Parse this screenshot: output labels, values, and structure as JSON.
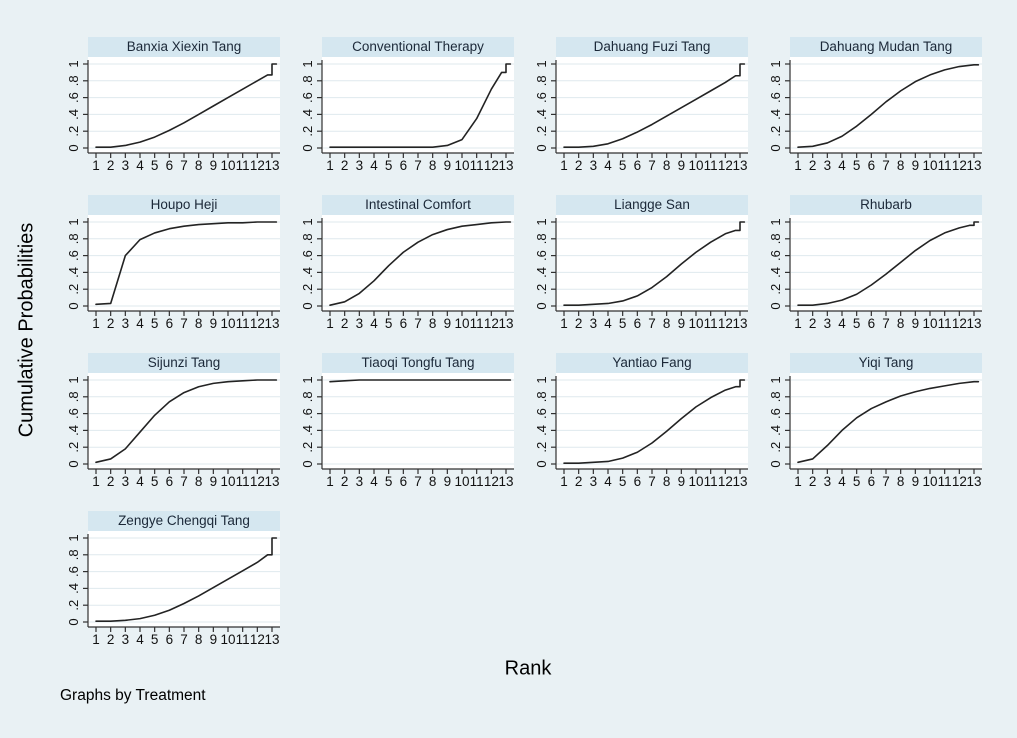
{
  "figure": {
    "ylabel": "Cumulative Probabilities",
    "xlabel": "Rank",
    "note": "Graphs by Treatment"
  },
  "colors": {
    "background": "#e9f1f4",
    "panel_title_strip": "#d5e7f0",
    "panel_title_text": "#1b2838",
    "plot_background": "#ffffff",
    "gridline": "#dfe9ee",
    "axis": "#303030",
    "curve": "#232323",
    "tick_label": "#111111"
  },
  "chart_data": {
    "type": "line",
    "layout": "small-multiples (4x4 grid, by Treatment)",
    "title": "",
    "xlabel": "Rank",
    "ylabel": "Cumulative Probabilities",
    "note": "Graphs by Treatment",
    "grid": true,
    "x": [
      1,
      2,
      3,
      4,
      5,
      6,
      7,
      8,
      9,
      10,
      11,
      12,
      13
    ],
    "x_tick_labels": [
      "1",
      "2",
      "3",
      "4",
      "5",
      "6",
      "7",
      "8",
      "9",
      "10",
      "11",
      "12",
      "13"
    ],
    "xlim": [
      0.5,
      13.5
    ],
    "ylim": [
      0,
      1
    ],
    "yticks": [
      0,
      0.2,
      0.4,
      0.6,
      0.8,
      1
    ],
    "ytick_labels": [
      "0",
      ".2",
      ".4",
      ".6",
      ".8",
      "1"
    ],
    "panels": [
      {
        "title": "Banxia Xiexin Tang",
        "values": [
          0.01,
          0.01,
          0.03,
          0.07,
          0.13,
          0.21,
          0.3,
          0.4,
          0.5,
          0.6,
          0.7,
          0.8,
          0.87
        ],
        "jump_to_one_at_13": true
      },
      {
        "title": "Conventional Therapy",
        "values": [
          0.01,
          0.01,
          0.01,
          0.01,
          0.01,
          0.01,
          0.01,
          0.01,
          0.03,
          0.1,
          0.35,
          0.7,
          0.9
        ],
        "jump_to_one_at_13": true
      },
      {
        "title": "Dahuang Fuzi Tang",
        "values": [
          0.01,
          0.01,
          0.02,
          0.05,
          0.11,
          0.19,
          0.28,
          0.38,
          0.48,
          0.58,
          0.68,
          0.78,
          0.86
        ],
        "jump_to_one_at_13": true
      },
      {
        "title": "Dahuang Mudan Tang",
        "values": [
          0.01,
          0.02,
          0.06,
          0.14,
          0.26,
          0.4,
          0.55,
          0.68,
          0.79,
          0.87,
          0.93,
          0.97,
          0.99
        ],
        "jump_to_one_at_13": false
      },
      {
        "title": "Houpo Heji",
        "values": [
          0.02,
          0.03,
          0.6,
          0.79,
          0.87,
          0.92,
          0.95,
          0.97,
          0.98,
          0.99,
          0.99,
          1.0,
          1.0
        ],
        "jump_to_one_at_13": false
      },
      {
        "title": "Intestinal Comfort",
        "values": [
          0.01,
          0.05,
          0.15,
          0.3,
          0.48,
          0.64,
          0.76,
          0.85,
          0.91,
          0.95,
          0.97,
          0.99,
          1.0
        ],
        "jump_to_one_at_13": false
      },
      {
        "title": "Liangge San",
        "values": [
          0.01,
          0.01,
          0.02,
          0.03,
          0.06,
          0.12,
          0.22,
          0.35,
          0.5,
          0.64,
          0.76,
          0.86,
          0.9
        ],
        "jump_to_one_at_13": true
      },
      {
        "title": "Rhubarb",
        "values": [
          0.01,
          0.01,
          0.03,
          0.07,
          0.14,
          0.25,
          0.38,
          0.52,
          0.66,
          0.78,
          0.87,
          0.93,
          0.96
        ],
        "jump_to_one_at_13": true
      },
      {
        "title": "Sijunzi Tang",
        "values": [
          0.02,
          0.06,
          0.18,
          0.38,
          0.58,
          0.74,
          0.85,
          0.92,
          0.96,
          0.98,
          0.99,
          1.0,
          1.0
        ],
        "jump_to_one_at_13": false
      },
      {
        "title": "Tiaoqi Tongfu Tang",
        "values": [
          0.98,
          0.99,
          1.0,
          1.0,
          1.0,
          1.0,
          1.0,
          1.0,
          1.0,
          1.0,
          1.0,
          1.0,
          1.0
        ],
        "jump_to_one_at_13": false
      },
      {
        "title": "Yantiao Fang",
        "values": [
          0.01,
          0.01,
          0.02,
          0.03,
          0.07,
          0.14,
          0.25,
          0.39,
          0.54,
          0.68,
          0.79,
          0.88,
          0.92
        ],
        "jump_to_one_at_13": true
      },
      {
        "title": "Yiqi Tang",
        "values": [
          0.02,
          0.06,
          0.22,
          0.4,
          0.55,
          0.66,
          0.74,
          0.81,
          0.86,
          0.9,
          0.93,
          0.96,
          0.98
        ],
        "jump_to_one_at_13": false
      },
      {
        "title": "Zengye Chengqi Tang",
        "values": [
          0.01,
          0.01,
          0.02,
          0.04,
          0.08,
          0.14,
          0.22,
          0.31,
          0.41,
          0.51,
          0.61,
          0.71,
          0.8
        ],
        "jump_to_one_at_13": true
      }
    ]
  }
}
